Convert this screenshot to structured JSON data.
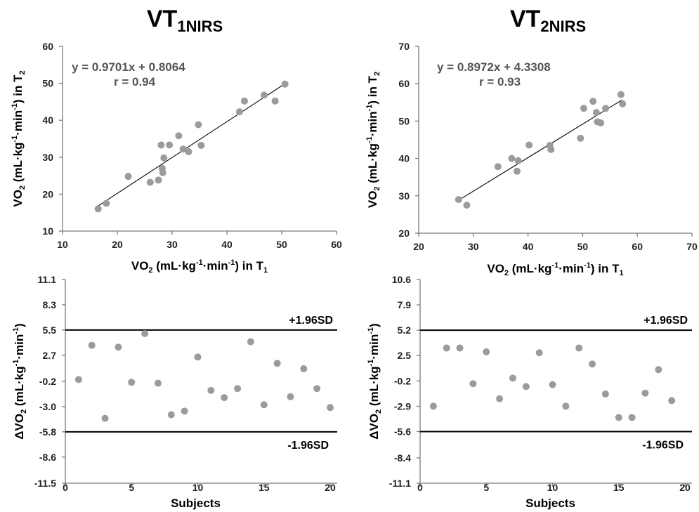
{
  "chart_data": [
    {
      "type": "scatter",
      "title": "VT",
      "title_sub": "1NIRS",
      "xlabel_main": "VO",
      "xlabel_sub1": "2",
      "xlabel_mid": " (mL·kg",
      "xlabel_sup1": "-1",
      "xlabel_mid2": "·min",
      "xlabel_sup2": "-1",
      "xlabel_end": ") in T",
      "xlabel_sub2": "1",
      "ylabel_main": "VO",
      "ylabel_sub1": "2",
      "ylabel_mid": " (mL·kg",
      "ylabel_sup1": "-1",
      "ylabel_mid2": "·min",
      "ylabel_sup2": "-1",
      "ylabel_end": ") in T",
      "ylabel_sub2": "2",
      "xlim": [
        10,
        60
      ],
      "ylim": [
        10,
        60
      ],
      "xticks": [
        "10",
        "20",
        "30",
        "40",
        "50",
        "60"
      ],
      "yticks": [
        "10",
        "20",
        "30",
        "40",
        "50",
        "60"
      ],
      "equation": "y = 0.9701x + 0.8064",
      "r_text": "r = 0.94",
      "fit": {
        "slope": 0.9701,
        "intercept": 0.8064,
        "x_range": [
          16.5,
          51
        ]
      },
      "points": [
        [
          16.5,
          16.0
        ],
        [
          18.0,
          17.5
        ],
        [
          22.0,
          24.8
        ],
        [
          26.0,
          23.2
        ],
        [
          27.5,
          23.8
        ],
        [
          28.0,
          33.3
        ],
        [
          28.2,
          27.0
        ],
        [
          28.3,
          25.8
        ],
        [
          28.5,
          29.8
        ],
        [
          29.5,
          33.3
        ],
        [
          31.2,
          35.8
        ],
        [
          32.0,
          32.2
        ],
        [
          33.0,
          31.5
        ],
        [
          34.8,
          38.8
        ],
        [
          35.3,
          33.2
        ],
        [
          42.3,
          42.3
        ],
        [
          43.2,
          45.2
        ],
        [
          46.8,
          46.8
        ],
        [
          48.8,
          45.2
        ],
        [
          50.6,
          49.8
        ]
      ],
      "grid": false
    },
    {
      "type": "scatter",
      "title": "VT",
      "title_sub": "2NIRS",
      "xlabel_main": "VO",
      "xlabel_sub1": "2",
      "xlabel_mid": " (mL·kg",
      "xlabel_sup1": "-1",
      "xlabel_mid2": "·min",
      "xlabel_sup2": "-1",
      "xlabel_end": ") in T",
      "xlabel_sub2": "1",
      "ylabel_main": "VO",
      "ylabel_sub1": "2",
      "ylabel_mid": " (mL·kg",
      "ylabel_sup1": "-1",
      "ylabel_mid2": "·min",
      "ylabel_sup2": "-1",
      "ylabel_end": ") in T",
      "ylabel_sub2": "2",
      "xlim": [
        20,
        70
      ],
      "ylim": [
        20,
        70
      ],
      "xticks": [
        "20",
        "30",
        "40",
        "50",
        "60",
        "70"
      ],
      "yticks": [
        "20",
        "30",
        "40",
        "50",
        "60",
        "70"
      ],
      "equation": "y = 0.8972x + 4.3308",
      "r_text": "r = 0.93",
      "fit": {
        "slope": 0.8972,
        "intercept": 4.3308,
        "x_range": [
          27.2,
          57.2
        ]
      },
      "points": [
        [
          27.3,
          29.0
        ],
        [
          28.8,
          27.5
        ],
        [
          34.5,
          37.8
        ],
        [
          37.0,
          40.0
        ],
        [
          38.0,
          36.6
        ],
        [
          38.2,
          39.4
        ],
        [
          40.2,
          43.6
        ],
        [
          44.0,
          43.5
        ],
        [
          44.2,
          42.4
        ],
        [
          49.6,
          45.4
        ],
        [
          50.2,
          53.4
        ],
        [
          51.9,
          55.3
        ],
        [
          52.5,
          52.3
        ],
        [
          52.7,
          49.8
        ],
        [
          53.3,
          49.5
        ],
        [
          54.2,
          53.4
        ],
        [
          57.0,
          57.1
        ],
        [
          57.3,
          54.6
        ]
      ],
      "grid": false
    },
    {
      "type": "scatter",
      "subtype": "bland-altman",
      "xlabel": "Subjects",
      "ylabel_main": "ΔVO",
      "ylabel_sub1": "2",
      "ylabel_mid": " (mL·kg",
      "ylabel_sup1": "-1",
      "ylabel_mid2": "·min",
      "ylabel_sup2": "-1",
      "ylabel_end": ")",
      "xlim": [
        0,
        20
      ],
      "ylim": [
        -11.5,
        11.1
      ],
      "xticks": [
        "0",
        "5",
        "10",
        "15",
        "20"
      ],
      "yticks": [
        "11.1",
        "8.3",
        "5.5",
        "2.7",
        "-0.2",
        "-3.0",
        "-5.8",
        "-8.6",
        "-11.5"
      ],
      "ytick_values": [
        11.1,
        8.3,
        5.5,
        2.7,
        -0.2,
        -3.0,
        -5.8,
        -8.6,
        -11.5
      ],
      "upper_limit": 5.5,
      "lower_limit": -5.8,
      "upper_label": "+1.96SD",
      "lower_label": "-1.96SD",
      "points": [
        [
          1,
          0.0
        ],
        [
          2,
          3.8
        ],
        [
          3,
          -4.3
        ],
        [
          4,
          3.6
        ],
        [
          5,
          -0.3
        ],
        [
          6,
          5.1
        ],
        [
          7,
          -0.4
        ],
        [
          8,
          -3.9
        ],
        [
          9,
          -3.5
        ],
        [
          10,
          2.5
        ],
        [
          11,
          -1.2
        ],
        [
          12,
          -2.0
        ],
        [
          13,
          -1.0
        ],
        [
          14,
          4.2
        ],
        [
          15,
          -2.8
        ],
        [
          16,
          1.8
        ],
        [
          17,
          -1.9
        ],
        [
          18,
          1.2
        ],
        [
          19,
          -1.0
        ],
        [
          20,
          -3.1
        ]
      ],
      "grid": false
    },
    {
      "type": "scatter",
      "subtype": "bland-altman",
      "xlabel": "Subjects",
      "ylabel_main": "ΔVO",
      "ylabel_sub1": "2",
      "ylabel_mid": " (mL·kg",
      "ylabel_sup1": "-1",
      "ylabel_mid2": "·min",
      "ylabel_sup2": "-1",
      "ylabel_end": ")",
      "xlim": [
        0,
        20
      ],
      "ylim": [
        -11.1,
        10.6
      ],
      "xticks": [
        "0",
        "5",
        "10",
        "15",
        "20"
      ],
      "yticks": [
        "10.6",
        "7.9",
        "5.2",
        "2.5",
        "-0.2",
        "-2.9",
        "-5.6",
        "-8.4",
        "-11.1"
      ],
      "ytick_values": [
        10.6,
        7.9,
        5.2,
        2.5,
        -0.2,
        -2.9,
        -5.6,
        -8.4,
        -11.1
      ],
      "upper_limit": 5.2,
      "lower_limit": -5.6,
      "upper_label": "+1.96SD",
      "lower_label": "-1.96SD",
      "points": [
        [
          1,
          -2.9
        ],
        [
          2,
          3.3
        ],
        [
          3,
          3.3
        ],
        [
          4,
          -0.5
        ],
        [
          5,
          2.9
        ],
        [
          6,
          -2.1
        ],
        [
          7,
          0.1
        ],
        [
          8,
          -0.8
        ],
        [
          9,
          2.8
        ],
        [
          10,
          -0.6
        ],
        [
          11,
          -2.9
        ],
        [
          12,
          3.3
        ],
        [
          13,
          1.6
        ],
        [
          14,
          -1.6
        ],
        [
          15,
          -4.1
        ],
        [
          16,
          -4.1
        ],
        [
          17,
          -1.5
        ],
        [
          18,
          1.0
        ],
        [
          19,
          -2.3
        ]
      ],
      "grid": false
    }
  ]
}
